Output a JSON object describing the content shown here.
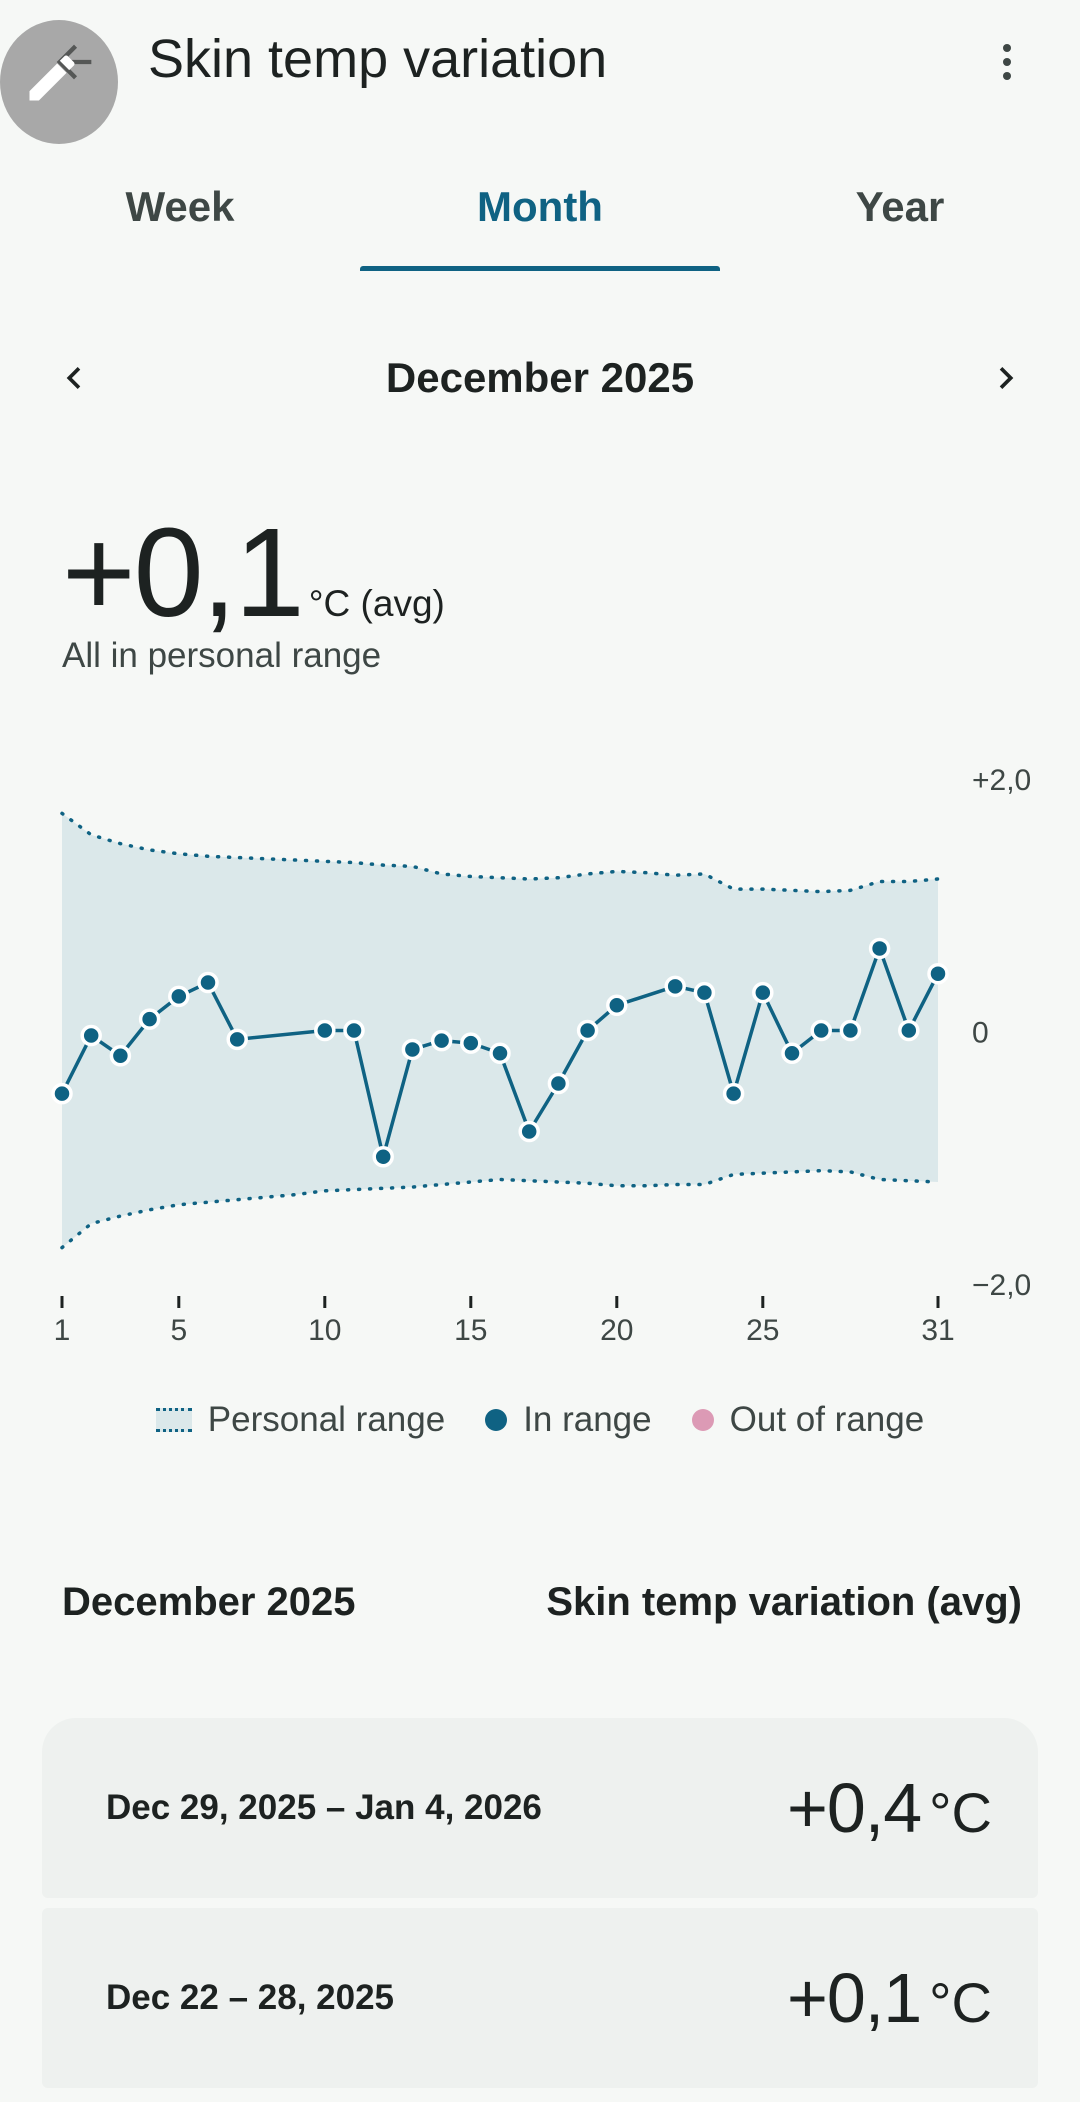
{
  "header": {
    "title": "Skin temp variation"
  },
  "tabs": [
    {
      "label": "Week"
    },
    {
      "label": "Month"
    },
    {
      "label": "Year"
    }
  ],
  "period": {
    "label": "December 2025"
  },
  "summary": {
    "value": "+0,1",
    "unit": "°C (avg)",
    "status": "All in personal range"
  },
  "chart_data": {
    "type": "line",
    "title": "",
    "xlabel": "",
    "ylabel": "",
    "x_tick_labels": [
      "1",
      "5",
      "10",
      "15",
      "20",
      "25",
      "31"
    ],
    "x_ticks": [
      1,
      5,
      10,
      15,
      20,
      25,
      31
    ],
    "y_tick_labels": [
      "+2,0",
      "0",
      "−2,0"
    ],
    "y_ticks": [
      2,
      0,
      -2
    ],
    "xlim": [
      1,
      31
    ],
    "ylim": [
      -2,
      2
    ],
    "series": [
      {
        "name": "In range",
        "x": [
          1,
          2,
          3,
          4,
          5,
          6,
          7,
          10,
          11,
          12,
          13,
          14,
          15,
          16,
          17,
          18,
          19,
          20,
          22,
          23,
          24,
          25,
          26,
          27,
          28,
          29,
          30,
          31
        ],
        "values": [
          -0.5,
          -0.04,
          -0.2,
          0.09,
          0.27,
          0.38,
          -0.07,
          -0.0,
          -0.0,
          -1.0,
          -0.15,
          -0.08,
          -0.1,
          -0.18,
          -0.8,
          -0.42,
          0.0,
          0.2,
          0.35,
          0.3,
          -0.5,
          0.3,
          -0.18,
          -0.0,
          -0.0,
          0.65,
          -0.0,
          0.45
        ]
      }
    ],
    "personal_range": {
      "upper": [
        1.72,
        1.55,
        1.48,
        1.43,
        1.4,
        1.38,
        1.37,
        1.36,
        1.35,
        1.34,
        1.33,
        1.31,
        1.3,
        1.24,
        1.22,
        1.21,
        1.2,
        1.21,
        1.24,
        1.26,
        1.25,
        1.23,
        1.24,
        1.12,
        1.12,
        1.11,
        1.1,
        1.11,
        1.18,
        1.18,
        1.2
      ],
      "lower": [
        -1.72,
        -1.53,
        -1.47,
        -1.42,
        -1.38,
        -1.36,
        -1.34,
        -1.32,
        -1.3,
        -1.27,
        -1.26,
        -1.25,
        -1.24,
        -1.22,
        -1.2,
        -1.18,
        -1.19,
        -1.2,
        -1.21,
        -1.23,
        -1.23,
        -1.22,
        -1.22,
        -1.14,
        -1.13,
        -1.12,
        -1.11,
        -1.12,
        -1.18,
        -1.19,
        -1.2
      ]
    }
  },
  "legend": [
    {
      "label": "Personal range",
      "color": "#dbe8ea"
    },
    {
      "label": "In range",
      "color": "#0f6283"
    },
    {
      "label": "Out of range",
      "color": "#dc9ab5"
    }
  ],
  "list": {
    "col1": "December 2025",
    "col2": "Skin temp variation (avg)",
    "rows": [
      {
        "date": "Dec 29, 2025 – Jan 4, 2026",
        "value": "+0,4",
        "unit": "°C"
      },
      {
        "date": "Dec 22 – 28, 2025",
        "value": "+0,1",
        "unit": "°C"
      }
    ]
  },
  "colors": {
    "accent": "#0f6283",
    "range_fill": "#dbe8ea",
    "background": "#f6f8f6"
  }
}
